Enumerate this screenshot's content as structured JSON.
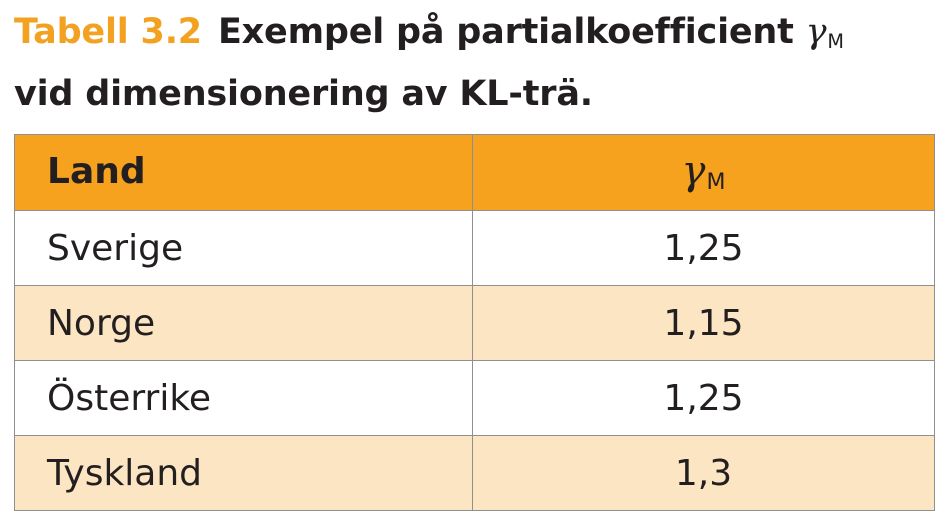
{
  "caption": {
    "label": "Tabell 3.2",
    "text_line1": "Exempel på partialkoefficient",
    "symbol": "γ",
    "symbol_subscript": "M",
    "text_line2": "vid dimensionering av KL-trä."
  },
  "table": {
    "headers": {
      "land": "Land",
      "gamma_symbol": "γ",
      "gamma_subscript": "M"
    },
    "rows": [
      {
        "land": "Sverige",
        "value": "1,25"
      },
      {
        "land": "Norge",
        "value": "1,15"
      },
      {
        "land": "Österrike",
        "value": "1,25"
      },
      {
        "land": "Tyskland",
        "value": "1,3"
      }
    ]
  },
  "colors": {
    "accent": "#f3a121",
    "header_background": "#f6a21e",
    "stripe_background": "#fce5c2",
    "text": "#231f20",
    "border": "#8f8f8f"
  }
}
